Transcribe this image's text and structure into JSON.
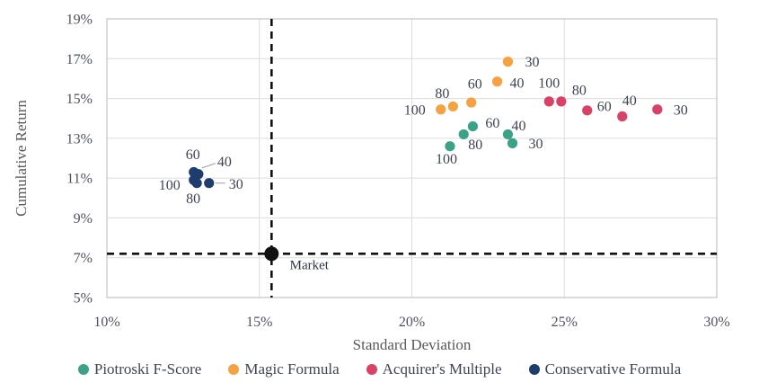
{
  "chart_data": {
    "type": "scatter",
    "title": "",
    "xlabel": "Standard Deviation",
    "ylabel": "Cumulative Return",
    "xlim": [
      10,
      30
    ],
    "ylim": [
      5,
      19
    ],
    "grid": true,
    "legend_position": "bottom",
    "x_ticks": [
      {
        "value": 10,
        "label": "10%"
      },
      {
        "value": 15,
        "label": "15%"
      },
      {
        "value": 20,
        "label": "20%"
      },
      {
        "value": 25,
        "label": "25%"
      },
      {
        "value": 30,
        "label": "30%"
      }
    ],
    "y_ticks": [
      {
        "value": 19,
        "label": "19%"
      },
      {
        "value": 17,
        "label": "17%"
      },
      {
        "value": 15,
        "label": "15%"
      },
      {
        "value": 13,
        "label": "13%"
      },
      {
        "value": 11,
        "label": "11%"
      },
      {
        "value": 9,
        "label": "9%"
      },
      {
        "value": 7,
        "label": "7%"
      },
      {
        "value": 5,
        "label": "5%"
      }
    ],
    "series": [
      {
        "name": "Piotroski F-Score",
        "color": "#3BA287",
        "points": [
          {
            "x": 21.25,
            "y": 12.6,
            "label": "100",
            "dx": -4,
            "dy": 14
          },
          {
            "x": 21.7,
            "y": 13.2,
            "label": "80",
            "dx": 13,
            "dy": 11
          },
          {
            "x": 22.0,
            "y": 13.6,
            "label": "60",
            "dx": 22,
            "dy": -4
          },
          {
            "x": 23.15,
            "y": 13.2,
            "label": "40",
            "dx": 12,
            "dy": -10
          },
          {
            "x": 23.3,
            "y": 12.75,
            "label": "30",
            "dx": 26,
            "dy": 0
          }
        ]
      },
      {
        "name": "Magic Formula",
        "color": "#F6A142",
        "points": [
          {
            "x": 20.95,
            "y": 14.45,
            "label": "100",
            "dx": -29,
            "dy": 0
          },
          {
            "x": 21.35,
            "y": 14.6,
            "label": "80",
            "dx": -12,
            "dy": -15
          },
          {
            "x": 21.95,
            "y": 14.8,
            "label": "60",
            "dx": 4,
            "dy": -21
          },
          {
            "x": 22.8,
            "y": 15.85,
            "label": "40",
            "dx": 22,
            "dy": 1
          },
          {
            "x": 23.15,
            "y": 16.85,
            "label": "30",
            "dx": 27,
            "dy": 0
          }
        ]
      },
      {
        "name": "Acquirer's Multiple",
        "color": "#D94167",
        "points": [
          {
            "x": 24.5,
            "y": 14.85,
            "label": "100",
            "dx": 0,
            "dy": -21
          },
          {
            "x": 24.9,
            "y": 14.85,
            "label": "80",
            "dx": 20,
            "dy": -13
          },
          {
            "x": 25.75,
            "y": 14.4,
            "label": "60",
            "dx": 19,
            "dy": -5
          },
          {
            "x": 26.9,
            "y": 14.1,
            "label": "40",
            "dx": 8,
            "dy": -18
          },
          {
            "x": 28.05,
            "y": 14.45,
            "label": "30",
            "dx": 26,
            "dy": 0
          }
        ]
      },
      {
        "name": "Conservative Formula",
        "color": "#1E3C6D",
        "points": [
          {
            "x": 12.85,
            "y": 11.3,
            "label": "60",
            "dx": -1,
            "dy": -20
          },
          {
            "x": 13.0,
            "y": 11.2,
            "label": "40",
            "dx": 29,
            "dy": -14,
            "leader": [
              4,
              -7,
              19,
              -12
            ]
          },
          {
            "x": 12.85,
            "y": 10.9,
            "label": "100",
            "dx": -27,
            "dy": 5
          },
          {
            "x": 12.95,
            "y": 10.75,
            "label": "80",
            "dx": -4,
            "dy": 17
          },
          {
            "x": 13.35,
            "y": 10.75,
            "label": "30",
            "dx": 30,
            "dy": 1,
            "leader": [
              7,
              0,
              18,
              0
            ]
          }
        ]
      }
    ],
    "market": {
      "label": "Market",
      "x": 15.4,
      "y": 7.2,
      "color": "#111111",
      "dx": 42,
      "dy": 13
    }
  }
}
